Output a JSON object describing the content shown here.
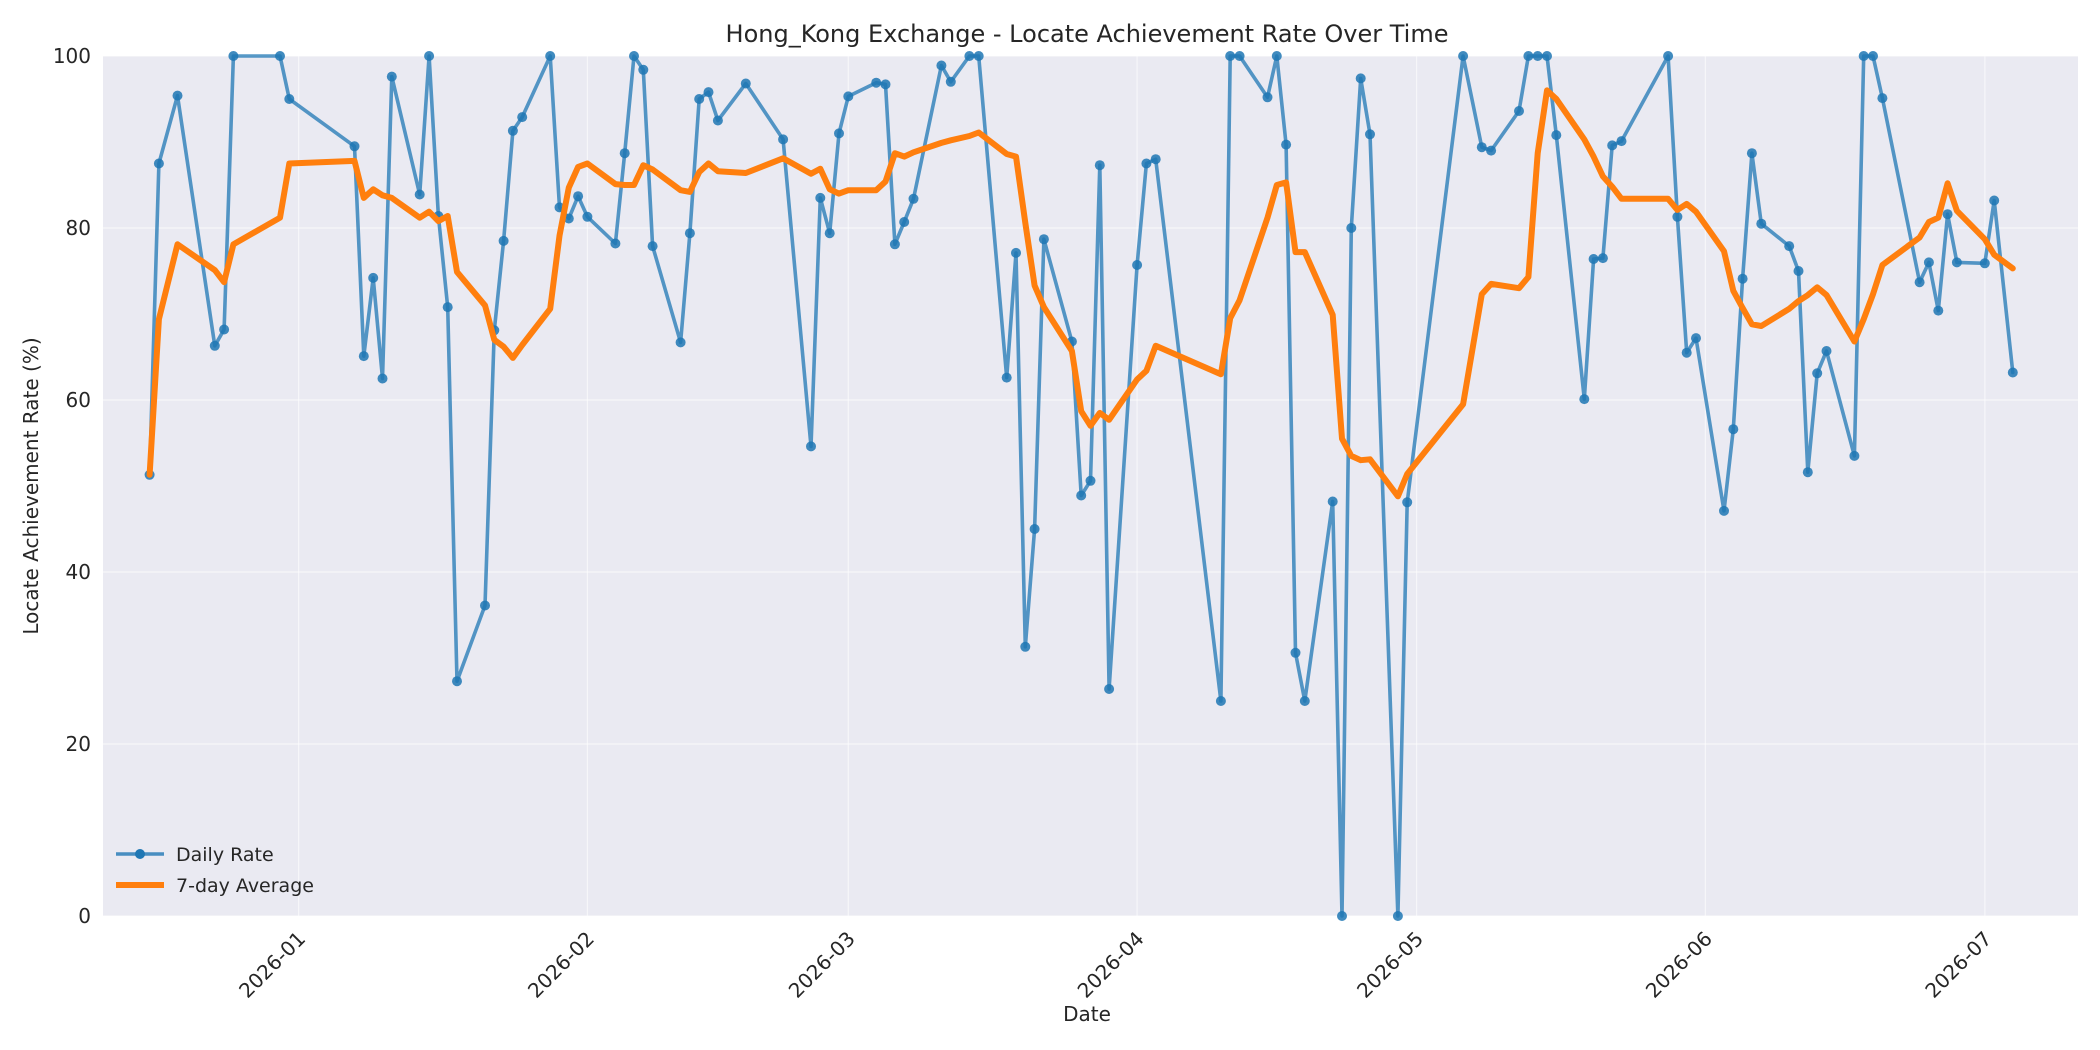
{
  "chart_data": {
    "type": "line",
    "title": "Hong_Kong Exchange - Locate Achievement Rate Over Time",
    "xlabel": "Date",
    "ylabel": "Locate Achievement Rate (%)",
    "ylim": [
      0,
      100
    ],
    "xlim": [
      "2025-12-11",
      "2026-07-11"
    ],
    "x_ticks": [
      "2026-01-01",
      "2026-02-01",
      "2026-03-01",
      "2026-04-01",
      "2026-05-01",
      "2026-06-01",
      "2026-07-01"
    ],
    "x_tick_labels": [
      "2026-01",
      "2026-02",
      "2026-03",
      "2026-04",
      "2026-05",
      "2026-06",
      "2026-07"
    ],
    "y_ticks": [
      0,
      20,
      40,
      60,
      80,
      100
    ],
    "y_tick_labels": [
      "0",
      "20",
      "40",
      "60",
      "80",
      "100"
    ],
    "grid": true,
    "legend_position": "bottom-left",
    "series": [
      {
        "name": "Daily Rate",
        "color": "#1f77b4",
        "style": "line-with-markers",
        "points": [
          [
            "2025-12-16",
            51.3
          ],
          [
            "2025-12-17",
            87.5
          ],
          [
            "2025-12-19",
            95.4
          ],
          [
            "2025-12-23",
            66.3
          ],
          [
            "2025-12-24",
            68.2
          ],
          [
            "2025-12-25",
            100
          ],
          [
            "2025-12-30",
            100
          ],
          [
            "2025-12-31",
            95.0
          ],
          [
            "2026-01-07",
            89.5
          ],
          [
            "2026-01-08",
            65.1
          ],
          [
            "2026-01-09",
            74.2
          ],
          [
            "2026-01-10",
            62.5
          ],
          [
            "2026-01-11",
            97.6
          ],
          [
            "2026-01-14",
            83.9
          ],
          [
            "2026-01-15",
            100
          ],
          [
            "2026-01-16",
            81.4
          ],
          [
            "2026-01-17",
            70.8
          ],
          [
            "2026-01-18",
            27.3
          ],
          [
            "2026-01-21",
            36.1
          ],
          [
            "2026-01-22",
            68.1
          ],
          [
            "2026-01-23",
            78.5
          ],
          [
            "2026-01-24",
            91.3
          ],
          [
            "2026-01-25",
            92.9
          ],
          [
            "2026-01-28",
            100
          ],
          [
            "2026-01-29",
            82.4
          ],
          [
            "2026-01-30",
            81.1
          ],
          [
            "2026-01-31",
            83.7
          ],
          [
            "2026-02-01",
            81.3
          ],
          [
            "2026-02-04",
            78.2
          ],
          [
            "2026-02-05",
            88.7
          ],
          [
            "2026-02-06",
            100
          ],
          [
            "2026-02-07",
            98.4
          ],
          [
            "2026-02-08",
            77.9
          ],
          [
            "2026-02-11",
            66.7
          ],
          [
            "2026-02-12",
            79.4
          ],
          [
            "2026-02-13",
            95.0
          ],
          [
            "2026-02-14",
            95.8
          ],
          [
            "2026-02-15",
            92.5
          ],
          [
            "2026-02-18",
            96.8
          ],
          [
            "2026-02-22",
            90.3
          ],
          [
            "2026-02-25",
            54.6
          ],
          [
            "2026-02-26",
            83.5
          ],
          [
            "2026-02-27",
            79.4
          ],
          [
            "2026-02-28",
            91.0
          ],
          [
            "2026-03-01",
            95.3
          ],
          [
            "2026-03-04",
            96.9
          ],
          [
            "2026-03-05",
            96.7
          ],
          [
            "2026-03-06",
            78.1
          ],
          [
            "2026-03-07",
            80.7
          ],
          [
            "2026-03-08",
            83.4
          ],
          [
            "2026-03-11",
            98.9
          ],
          [
            "2026-03-12",
            97.0
          ],
          [
            "2026-03-14",
            100
          ],
          [
            "2026-03-15",
            100
          ],
          [
            "2026-03-18",
            62.6
          ],
          [
            "2026-03-19",
            77.1
          ],
          [
            "2026-03-20",
            31.3
          ],
          [
            "2026-03-21",
            45.0
          ],
          [
            "2026-03-22",
            78.7
          ],
          [
            "2026-03-25",
            66.8
          ],
          [
            "2026-03-26",
            48.9
          ],
          [
            "2026-03-27",
            50.6
          ],
          [
            "2026-03-28",
            87.3
          ],
          [
            "2026-03-29",
            26.4
          ],
          [
            "2026-04-01",
            75.7
          ],
          [
            "2026-04-02",
            87.5
          ],
          [
            "2026-04-03",
            88.0
          ],
          [
            "2026-04-10",
            25.0
          ],
          [
            "2026-04-11",
            100
          ],
          [
            "2026-04-12",
            100
          ],
          [
            "2026-04-15",
            95.2
          ],
          [
            "2026-04-16",
            100
          ],
          [
            "2026-04-17",
            89.7
          ],
          [
            "2026-04-18",
            30.6
          ],
          [
            "2026-04-19",
            25.0
          ],
          [
            "2026-04-22",
            48.2
          ],
          [
            "2026-04-23",
            0
          ],
          [
            "2026-04-24",
            80.0
          ],
          [
            "2026-04-25",
            97.4
          ],
          [
            "2026-04-26",
            90.9
          ],
          [
            "2026-04-29",
            0
          ],
          [
            "2026-04-30",
            48.1
          ],
          [
            "2026-05-06",
            100
          ],
          [
            "2026-05-08",
            89.4
          ],
          [
            "2026-05-09",
            89.0
          ],
          [
            "2026-05-12",
            93.6
          ],
          [
            "2026-05-13",
            100
          ],
          [
            "2026-05-14",
            100
          ],
          [
            "2026-05-15",
            100
          ],
          [
            "2026-05-16",
            90.8
          ],
          [
            "2026-05-19",
            60.1
          ],
          [
            "2026-05-20",
            76.4
          ],
          [
            "2026-05-21",
            76.5
          ],
          [
            "2026-05-22",
            89.6
          ],
          [
            "2026-05-23",
            90.1
          ],
          [
            "2026-05-28",
            100
          ],
          [
            "2026-05-29",
            81.3
          ],
          [
            "2026-05-30",
            65.5
          ],
          [
            "2026-05-31",
            67.2
          ],
          [
            "2026-06-03",
            47.1
          ],
          [
            "2026-06-04",
            56.6
          ],
          [
            "2026-06-05",
            74.1
          ],
          [
            "2026-06-06",
            88.7
          ],
          [
            "2026-06-07",
            80.5
          ],
          [
            "2026-06-10",
            77.9
          ],
          [
            "2026-06-11",
            75.0
          ],
          [
            "2026-06-12",
            51.6
          ],
          [
            "2026-06-13",
            63.1
          ],
          [
            "2026-06-14",
            65.7
          ],
          [
            "2026-06-17",
            53.5
          ],
          [
            "2026-06-18",
            100
          ],
          [
            "2026-06-19",
            100
          ],
          [
            "2026-06-20",
            95.1
          ],
          [
            "2026-06-24",
            73.7
          ],
          [
            "2026-06-25",
            76.0
          ],
          [
            "2026-06-26",
            70.4
          ],
          [
            "2026-06-27",
            81.6
          ],
          [
            "2026-06-28",
            76.0
          ],
          [
            "2026-07-01",
            75.9
          ],
          [
            "2026-07-02",
            83.2
          ],
          [
            "2026-07-04",
            63.2
          ]
        ]
      },
      {
        "name": "7-day Average",
        "color": "#ff7f0e",
        "style": "thick-line",
        "points": [
          [
            "2025-12-16",
            51.3
          ],
          [
            "2025-12-17",
            69.4
          ],
          [
            "2025-12-19",
            78.1
          ],
          [
            "2025-12-23",
            75.1
          ],
          [
            "2025-12-24",
            73.7
          ],
          [
            "2025-12-25",
            78.1
          ],
          [
            "2025-12-30",
            81.2
          ],
          [
            "2025-12-31",
            87.5
          ],
          [
            "2026-01-07",
            87.8
          ],
          [
            "2026-01-08",
            83.5
          ],
          [
            "2026-01-09",
            84.5
          ],
          [
            "2026-01-10",
            83.8
          ],
          [
            "2026-01-11",
            83.5
          ],
          [
            "2026-01-14",
            81.2
          ],
          [
            "2026-01-15",
            81.9
          ],
          [
            "2026-01-16",
            80.8
          ],
          [
            "2026-01-17",
            81.4
          ],
          [
            "2026-01-18",
            74.9
          ],
          [
            "2026-01-21",
            71.0
          ],
          [
            "2026-01-22",
            67.0
          ],
          [
            "2026-01-23",
            66.2
          ],
          [
            "2026-01-24",
            64.9
          ],
          [
            "2026-01-25",
            66.4
          ],
          [
            "2026-01-28",
            70.6
          ],
          [
            "2026-01-29",
            79.1
          ],
          [
            "2026-01-30",
            84.7
          ],
          [
            "2026-01-31",
            87.1
          ],
          [
            "2026-02-01",
            87.5
          ],
          [
            "2026-02-04",
            85.1
          ],
          [
            "2026-02-05",
            85.0
          ],
          [
            "2026-02-06",
            85.0
          ],
          [
            "2026-02-07",
            87.3
          ],
          [
            "2026-02-08",
            86.8
          ],
          [
            "2026-02-11",
            84.4
          ],
          [
            "2026-02-12",
            84.2
          ],
          [
            "2026-02-13",
            86.5
          ],
          [
            "2026-02-14",
            87.5
          ],
          [
            "2026-02-15",
            86.6
          ],
          [
            "2026-02-18",
            86.4
          ],
          [
            "2026-02-22",
            88.1
          ],
          [
            "2026-02-25",
            86.3
          ],
          [
            "2026-02-26",
            86.9
          ],
          [
            "2026-02-27",
            84.5
          ],
          [
            "2026-02-28",
            84.0
          ],
          [
            "2026-03-01",
            84.4
          ],
          [
            "2026-03-04",
            84.4
          ],
          [
            "2026-03-05",
            85.4
          ],
          [
            "2026-03-06",
            88.7
          ],
          [
            "2026-03-07",
            88.3
          ],
          [
            "2026-03-08",
            88.8
          ],
          [
            "2026-03-11",
            89.9
          ],
          [
            "2026-03-12",
            90.2
          ],
          [
            "2026-03-14",
            90.7
          ],
          [
            "2026-03-15",
            91.1
          ],
          [
            "2026-03-18",
            88.6
          ],
          [
            "2026-03-19",
            88.3
          ],
          [
            "2026-03-20",
            80.6
          ],
          [
            "2026-03-21",
            73.3
          ],
          [
            "2026-03-22",
            70.8
          ],
          [
            "2026-03-25",
            65.7
          ],
          [
            "2026-03-26",
            58.7
          ],
          [
            "2026-03-27",
            57.0
          ],
          [
            "2026-03-28",
            58.5
          ],
          [
            "2026-03-29",
            57.7
          ],
          [
            "2026-04-01",
            62.4
          ],
          [
            "2026-04-02",
            63.4
          ],
          [
            "2026-04-03",
            66.3
          ],
          [
            "2026-04-10",
            63.0
          ],
          [
            "2026-04-11",
            69.5
          ],
          [
            "2026-04-12",
            71.6
          ],
          [
            "2026-04-15",
            81.2
          ],
          [
            "2026-04-16",
            85.0
          ],
          [
            "2026-04-17",
            85.3
          ],
          [
            "2026-04-18",
            77.2
          ],
          [
            "2026-04-19",
            77.2
          ],
          [
            "2026-04-22",
            69.9
          ],
          [
            "2026-04-23",
            55.5
          ],
          [
            "2026-04-24",
            53.5
          ],
          [
            "2026-04-25",
            53.0
          ],
          [
            "2026-04-26",
            53.1
          ],
          [
            "2026-04-29",
            48.8
          ],
          [
            "2026-04-30",
            51.4
          ],
          [
            "2026-05-06",
            59.5
          ],
          [
            "2026-05-08",
            72.3
          ],
          [
            "2026-05-09",
            73.5
          ],
          [
            "2026-05-12",
            73.0
          ],
          [
            "2026-05-13",
            74.3
          ],
          [
            "2026-05-14",
            88.7
          ],
          [
            "2026-05-15",
            96.0
          ],
          [
            "2026-05-16",
            95.0
          ],
          [
            "2026-05-19",
            90.3
          ],
          [
            "2026-05-20",
            88.3
          ],
          [
            "2026-05-21",
            86.0
          ],
          [
            "2026-05-22",
            84.8
          ],
          [
            "2026-05-23",
            83.4
          ],
          [
            "2026-05-28",
            83.4
          ],
          [
            "2026-05-29",
            82.1
          ],
          [
            "2026-05-30",
            82.8
          ],
          [
            "2026-05-31",
            81.9
          ],
          [
            "2026-06-03",
            77.3
          ],
          [
            "2026-06-04",
            72.7
          ],
          [
            "2026-06-05",
            70.7
          ],
          [
            "2026-06-06",
            68.8
          ],
          [
            "2026-06-07",
            68.6
          ],
          [
            "2026-06-10",
            70.6
          ],
          [
            "2026-06-11",
            71.5
          ],
          [
            "2026-06-12",
            72.2
          ],
          [
            "2026-06-13",
            73.1
          ],
          [
            "2026-06-14",
            72.2
          ],
          [
            "2026-06-17",
            66.8
          ],
          [
            "2026-06-18",
            69.4
          ],
          [
            "2026-06-19",
            72.3
          ],
          [
            "2026-06-20",
            75.7
          ],
          [
            "2026-06-24",
            78.9
          ],
          [
            "2026-06-25",
            80.7
          ],
          [
            "2026-06-26",
            81.2
          ],
          [
            "2026-06-27",
            85.2
          ],
          [
            "2026-06-28",
            82.0
          ],
          [
            "2026-07-01",
            78.7
          ],
          [
            "2026-07-02",
            76.9
          ],
          [
            "2026-07-04",
            75.3
          ]
        ]
      }
    ]
  }
}
